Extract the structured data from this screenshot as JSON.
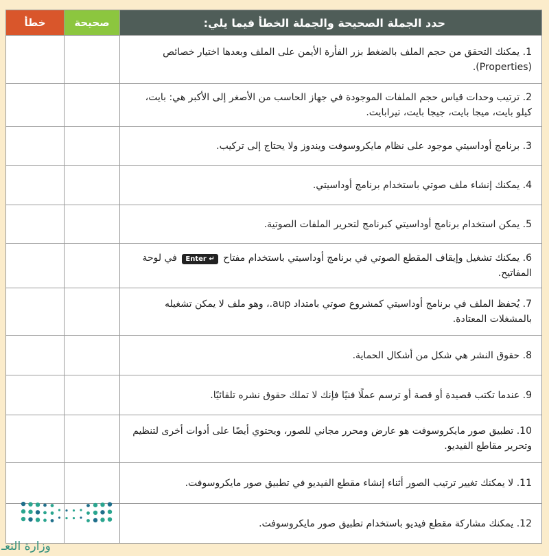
{
  "header": {
    "wrong_label": "خطأ",
    "right_label": "صحيحة",
    "title": "حدد الجملة الصحيحة والجملة الخطأ فيما يلي:"
  },
  "colors": {
    "wrong": "#d9562b",
    "right": "#8cc63f",
    "header": "#4f5d58",
    "background": "#fbeccb"
  },
  "questions": [
    {
      "num": "1.",
      "text": "يمكنك التحقق من حجم الملف بالضغط بزر الفأرة الأيمن على الملف وبعدها اختيار خصائص (Properties)."
    },
    {
      "num": "2.",
      "text": "ترتيب وحدات قياس حجم الملفات الموجودة في جهاز الحاسب من الأصغر إلى الأكبر هي: بايت، كيلو بايت، ميجا بايت، جيجا بايت، تيرابايت."
    },
    {
      "num": "3.",
      "text": "برنامج أوداسيتي موجود على نظام مايكروسوفت ويندوز ولا يحتاج إلى تركيب."
    },
    {
      "num": "4.",
      "text": "يمكنك إنشاء ملف صوتي باستخدام برنامج أوداسيتي."
    },
    {
      "num": "5.",
      "text": "يمكن استخدام برنامج أوداسيتي كبرنامج لتحرير الملفات الصوتية."
    },
    {
      "num": "6.",
      "text_before": "يمكنك تشغيل وإيقاف المقطع الصوتي في برنامج أوداسيتي باستخدام مفتاح",
      "key": "Enter ↵",
      "text_after": "في لوحة المفاتيح."
    },
    {
      "num": "7.",
      "text": "يُحفظ الملف في برنامج أوداسيتي كمشروع صوتي بامتداد aup.، وهو ملف لا يمكن تشغيله بالمشغلات المعتادة."
    },
    {
      "num": "8.",
      "text": "حقوق النشر هي شكل من أشكال الحماية."
    },
    {
      "num": "9.",
      "text": "عندما تكتب قصيدة أو قصة أو ترسم عملًا فنيًا فإنك لا تملك حقوق نشره تلقائيًا."
    },
    {
      "num": "10.",
      "text": "تطبيق صور مايكروسوفت هو عارض ومحرر مجاني للصور، ويحتوي أيضًا على أدوات أخرى لتنظيم وتحرير مقاطع الفيديو."
    },
    {
      "num": "11.",
      "text": "لا يمكنك تغيير ترتيب الصور أثناء إنشاء مقطع الفيديو في تطبيق صور مايكروسوفت."
    },
    {
      "num": "12.",
      "text": "يمكنك مشاركة مقطع فيديو باستخدام تطبيق صور مايكروسوفت."
    }
  ],
  "logo": {
    "text": "وزارة التعـ",
    "icon": "ministry-of-education-dots-logo"
  }
}
